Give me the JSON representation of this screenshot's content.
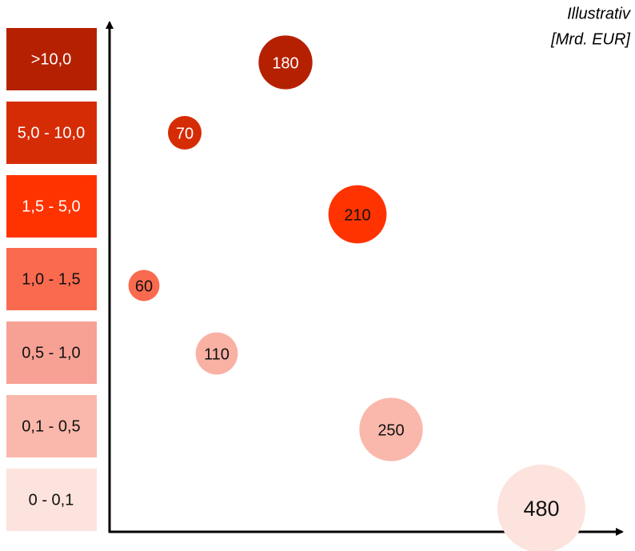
{
  "note_lines": [
    "Illustrativ",
    "[Mrd. EUR]"
  ],
  "legend": [
    {
      "label": ">10,0",
      "color": "#b52100"
    },
    {
      "label": "5,0 - 10,0",
      "color": "#d62c06"
    },
    {
      "label": "1,5 - 5,0",
      "color": "#ff3300"
    },
    {
      "label": "1,0 - 1,5",
      "color": "#fa6a4f"
    },
    {
      "label": "0,5 - 1,0",
      "color": "#f7a195"
    },
    {
      "label": "0,1 - 0,5",
      "color": "#f9b8ab"
    },
    {
      "label": "0 - 0,1",
      "color": "#fde3dd"
    }
  ],
  "bubbles": [
    {
      "value": 180,
      "color": "#b52100"
    },
    {
      "value": 70,
      "color": "#d62c06"
    },
    {
      "value": 210,
      "color": "#ff3300"
    },
    {
      "value": 60,
      "color": "#fa6a4f"
    },
    {
      "value": 110,
      "color": "#f9b1a4"
    },
    {
      "value": 250,
      "color": "#f9b8ab"
    },
    {
      "value": 480,
      "color": "#fde3dd"
    }
  ]
}
